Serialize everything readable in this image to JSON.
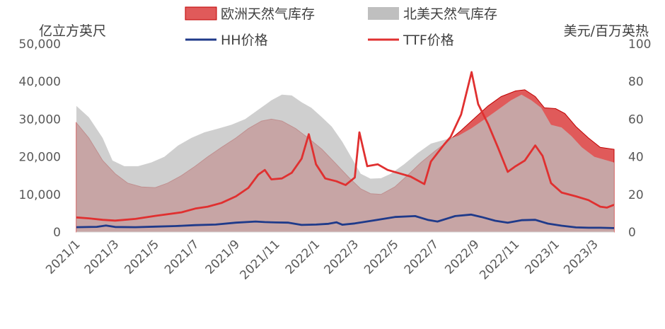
{
  "chart_data": {
    "type": "area",
    "x_tick_labels": [
      "2021/1",
      "2021/3",
      "2021/5",
      "2021/7",
      "2021/9",
      "2021/11",
      "2022/1",
      "2022/3",
      "2022/5",
      "2022/7",
      "2022/9",
      "2022/11",
      "2023/1",
      "2023/3"
    ],
    "left_axis": {
      "label": "亿立方英尺",
      "ylim": [
        0,
        50000
      ],
      "tick_labels": [
        "0",
        "10,000",
        "20,000",
        "30,000",
        "40,000",
        "50,000"
      ]
    },
    "right_axis": {
      "label": "美元/百万英热",
      "ylim": [
        0,
        100
      ],
      "tick_labels": [
        "0",
        "20",
        "40",
        "60",
        "80",
        "100"
      ]
    },
    "legend": [
      "欧洲天然气库存",
      "北美天然气库存",
      "HH价格",
      "TTF价格"
    ],
    "colors": {
      "europe_fill": "#E05A5A",
      "europe_stroke": "#C00000",
      "na_fill": "#BFBFBF",
      "hh": "#1F3A8A",
      "ttf": "#E03030"
    },
    "series": [
      {
        "name": "欧洲天然气库存",
        "axis": "left",
        "type": "area",
        "points": [
          [
            "2021-01-01",
            29000
          ],
          [
            "2021-01-20",
            25000
          ],
          [
            "2021-02-10",
            19000
          ],
          [
            "2021-03-01",
            15500
          ],
          [
            "2021-03-20",
            13000
          ],
          [
            "2021-04-10",
            12000
          ],
          [
            "2021-05-01",
            11800
          ],
          [
            "2021-05-20",
            13000
          ],
          [
            "2021-06-10",
            15000
          ],
          [
            "2021-07-01",
            17500
          ],
          [
            "2021-07-20",
            20000
          ],
          [
            "2021-08-10",
            22500
          ],
          [
            "2021-09-01",
            25000
          ],
          [
            "2021-09-20",
            27500
          ],
          [
            "2021-10-10",
            29500
          ],
          [
            "2021-10-25",
            30000
          ],
          [
            "2021-11-10",
            29500
          ],
          [
            "2021-12-01",
            27500
          ],
          [
            "2021-12-20",
            25000
          ],
          [
            "2022-01-10",
            22000
          ],
          [
            "2022-02-01",
            18000
          ],
          [
            "2022-02-20",
            14500
          ],
          [
            "2022-03-10",
            11500
          ],
          [
            "2022-03-25",
            10200
          ],
          [
            "2022-04-10",
            10000
          ],
          [
            "2022-05-01",
            12000
          ],
          [
            "2022-05-20",
            15000
          ],
          [
            "2022-06-10",
            18500
          ],
          [
            "2022-07-01",
            21500
          ],
          [
            "2022-07-20",
            24000
          ],
          [
            "2022-08-10",
            27000
          ],
          [
            "2022-09-01",
            30500
          ],
          [
            "2022-09-20",
            33500
          ],
          [
            "2022-10-10",
            36000
          ],
          [
            "2022-11-01",
            37500
          ],
          [
            "2022-11-15",
            37800
          ],
          [
            "2022-12-01",
            36000
          ],
          [
            "2022-12-15",
            33000
          ],
          [
            "2023-01-01",
            32800
          ],
          [
            "2023-01-15",
            31500
          ],
          [
            "2023-02-01",
            28000
          ],
          [
            "2023-02-20",
            25000
          ],
          [
            "2023-03-10",
            22500
          ],
          [
            "2023-03-31",
            22000
          ]
        ]
      },
      {
        "name": "北美天然气库存",
        "axis": "left",
        "type": "area",
        "points": [
          [
            "2021-01-01",
            33500
          ],
          [
            "2021-01-20",
            30500
          ],
          [
            "2021-02-10",
            25000
          ],
          [
            "2021-02-25",
            19000
          ],
          [
            "2021-03-15",
            17500
          ],
          [
            "2021-04-05",
            17500
          ],
          [
            "2021-04-25",
            18500
          ],
          [
            "2021-05-15",
            20000
          ],
          [
            "2021-06-05",
            23000
          ],
          [
            "2021-06-25",
            25000
          ],
          [
            "2021-07-15",
            26500
          ],
          [
            "2021-08-05",
            27500
          ],
          [
            "2021-08-25",
            28500
          ],
          [
            "2021-09-15",
            30000
          ],
          [
            "2021-10-05",
            32500
          ],
          [
            "2021-10-25",
            35000
          ],
          [
            "2021-11-10",
            36500
          ],
          [
            "2021-11-25",
            36300
          ],
          [
            "2021-12-10",
            34500
          ],
          [
            "2021-12-25",
            33000
          ],
          [
            "2022-01-10",
            30500
          ],
          [
            "2022-01-25",
            28000
          ],
          [
            "2022-02-10",
            24000
          ],
          [
            "2022-02-25",
            19500
          ],
          [
            "2022-03-10",
            15500
          ],
          [
            "2022-03-25",
            14200
          ],
          [
            "2022-04-10",
            14300
          ],
          [
            "2022-04-25",
            15500
          ],
          [
            "2022-05-15",
            18000
          ],
          [
            "2022-06-05",
            21000
          ],
          [
            "2022-06-25",
            23500
          ],
          [
            "2022-07-15",
            24500
          ],
          [
            "2022-08-05",
            25500
          ],
          [
            "2022-08-25",
            27500
          ],
          [
            "2022-09-15",
            30000
          ],
          [
            "2022-10-05",
            32500
          ],
          [
            "2022-10-25",
            35000
          ],
          [
            "2022-11-10",
            36500
          ],
          [
            "2022-11-25",
            35000
          ],
          [
            "2022-12-10",
            33000
          ],
          [
            "2022-12-25",
            28500
          ],
          [
            "2023-01-10",
            27800
          ],
          [
            "2023-01-25",
            25500
          ],
          [
            "2023-02-10",
            22500
          ],
          [
            "2023-03-01",
            20000
          ],
          [
            "2023-03-31",
            18500
          ]
        ]
      },
      {
        "name": "HH价格",
        "axis": "right",
        "type": "line",
        "points": [
          [
            "2021-01-01",
            2.6
          ],
          [
            "2021-02-01",
            2.8
          ],
          [
            "2021-02-15",
            3.5
          ],
          [
            "2021-03-01",
            2.7
          ],
          [
            "2021-04-01",
            2.6
          ],
          [
            "2021-05-01",
            2.9
          ],
          [
            "2021-06-01",
            3.2
          ],
          [
            "2021-07-01",
            3.7
          ],
          [
            "2021-08-01",
            4.0
          ],
          [
            "2021-09-01",
            5.0
          ],
          [
            "2021-10-01",
            5.6
          ],
          [
            "2021-10-15",
            5.3
          ],
          [
            "2021-11-01",
            5.1
          ],
          [
            "2021-11-20",
            5.0
          ],
          [
            "2021-12-10",
            3.8
          ],
          [
            "2022-01-01",
            4.0
          ],
          [
            "2022-01-20",
            4.4
          ],
          [
            "2022-02-01",
            5.2
          ],
          [
            "2022-02-10",
            3.9
          ],
          [
            "2022-03-01",
            4.6
          ],
          [
            "2022-04-01",
            6.3
          ],
          [
            "2022-05-01",
            8.0
          ],
          [
            "2022-06-01",
            8.5
          ],
          [
            "2022-06-20",
            6.5
          ],
          [
            "2022-07-05",
            5.6
          ],
          [
            "2022-08-01",
            8.5
          ],
          [
            "2022-08-25",
            9.3
          ],
          [
            "2022-09-10",
            8.0
          ],
          [
            "2022-10-01",
            6.0
          ],
          [
            "2022-10-20",
            5.0
          ],
          [
            "2022-11-10",
            6.3
          ],
          [
            "2022-12-01",
            6.5
          ],
          [
            "2022-12-20",
            4.5
          ],
          [
            "2023-01-10",
            3.4
          ],
          [
            "2023-02-01",
            2.5
          ],
          [
            "2023-02-20",
            2.3
          ],
          [
            "2023-03-10",
            2.3
          ],
          [
            "2023-03-31",
            2.1
          ]
        ]
      },
      {
        "name": "TTF价格",
        "axis": "right",
        "type": "line",
        "points": [
          [
            "2021-01-01",
            7.8
          ],
          [
            "2021-01-20",
            7.3
          ],
          [
            "2021-02-10",
            6.5
          ],
          [
            "2021-03-01",
            6.1
          ],
          [
            "2021-04-01",
            7.0
          ],
          [
            "2021-05-01",
            8.6
          ],
          [
            "2021-05-20",
            9.5
          ],
          [
            "2021-06-10",
            10.5
          ],
          [
            "2021-07-01",
            12.5
          ],
          [
            "2021-07-20",
            13.5
          ],
          [
            "2021-08-10",
            15.5
          ],
          [
            "2021-09-01",
            19.0
          ],
          [
            "2021-09-20",
            23.5
          ],
          [
            "2021-10-05",
            30.5
          ],
          [
            "2021-10-15",
            33.0
          ],
          [
            "2021-10-25",
            28.0
          ],
          [
            "2021-11-10",
            28.5
          ],
          [
            "2021-11-25",
            31.5
          ],
          [
            "2021-12-10",
            39.0
          ],
          [
            "2021-12-21",
            52.0
          ],
          [
            "2022-01-01",
            36.0
          ],
          [
            "2022-01-15",
            28.5
          ],
          [
            "2022-02-01",
            27.0
          ],
          [
            "2022-02-15",
            25.0
          ],
          [
            "2022-03-01",
            29.0
          ],
          [
            "2022-03-08",
            53.0
          ],
          [
            "2022-03-20",
            35.0
          ],
          [
            "2022-04-05",
            36.0
          ],
          [
            "2022-04-20",
            33.0
          ],
          [
            "2022-05-05",
            31.5
          ],
          [
            "2022-05-25",
            29.5
          ],
          [
            "2022-06-15",
            25.5
          ],
          [
            "2022-06-25",
            37.5
          ],
          [
            "2022-07-15",
            46.5
          ],
          [
            "2022-07-25",
            50.5
          ],
          [
            "2022-08-10",
            62.5
          ],
          [
            "2022-08-26",
            85.0
          ],
          [
            "2022-09-05",
            68.0
          ],
          [
            "2022-09-20",
            57.5
          ],
          [
            "2022-10-05",
            45.0
          ],
          [
            "2022-10-20",
            32.0
          ],
          [
            "2022-11-01",
            35.0
          ],
          [
            "2022-11-15",
            38.0
          ],
          [
            "2022-12-01",
            46.0
          ],
          [
            "2022-12-12",
            40.5
          ],
          [
            "2022-12-25",
            26.0
          ],
          [
            "2023-01-10",
            21.0
          ],
          [
            "2023-02-01",
            19.0
          ],
          [
            "2023-02-20",
            17.0
          ],
          [
            "2023-03-10",
            13.5
          ],
          [
            "2023-03-20",
            13.0
          ],
          [
            "2023-03-31",
            14.5
          ]
        ]
      }
    ]
  }
}
